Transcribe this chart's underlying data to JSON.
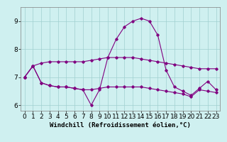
{
  "title": "",
  "xlabel": "Windchill (Refroidissement éolien,°C)",
  "ylabel": "",
  "background_color": "#cff0f0",
  "grid_color": "#a0d0d0",
  "line_color": "#800080",
  "x": [
    0,
    1,
    2,
    3,
    4,
    5,
    6,
    7,
    8,
    9,
    10,
    11,
    12,
    13,
    14,
    15,
    16,
    17,
    18,
    19,
    20,
    21,
    22,
    23
  ],
  "line1": [
    7.0,
    7.4,
    7.5,
    7.55,
    7.55,
    7.55,
    7.55,
    7.55,
    7.6,
    7.65,
    7.7,
    7.7,
    7.7,
    7.7,
    7.65,
    7.6,
    7.55,
    7.5,
    7.45,
    7.4,
    7.35,
    7.3,
    7.3,
    7.3
  ],
  "line2": [
    7.0,
    7.4,
    6.8,
    6.7,
    6.65,
    6.65,
    6.6,
    6.55,
    6.0,
    6.55,
    7.7,
    8.35,
    8.8,
    9.0,
    9.1,
    9.0,
    8.5,
    7.25,
    6.65,
    6.5,
    6.35,
    6.6,
    6.85,
    6.55
  ],
  "line3": [
    7.0,
    7.4,
    6.8,
    6.7,
    6.65,
    6.65,
    6.6,
    6.55,
    6.55,
    6.6,
    6.65,
    6.65,
    6.65,
    6.65,
    6.65,
    6.6,
    6.55,
    6.5,
    6.45,
    6.4,
    6.3,
    6.55,
    6.5,
    6.45
  ],
  "xlim": [
    -0.5,
    23.5
  ],
  "ylim": [
    5.8,
    9.5
  ],
  "yticks": [
    6,
    7,
    8,
    9
  ],
  "xticks": [
    0,
    1,
    2,
    3,
    4,
    5,
    6,
    7,
    8,
    9,
    10,
    11,
    12,
    13,
    14,
    15,
    16,
    17,
    18,
    19,
    20,
    21,
    22,
    23
  ],
  "xlabel_fontsize": 6.5,
  "tick_fontsize": 6.5
}
